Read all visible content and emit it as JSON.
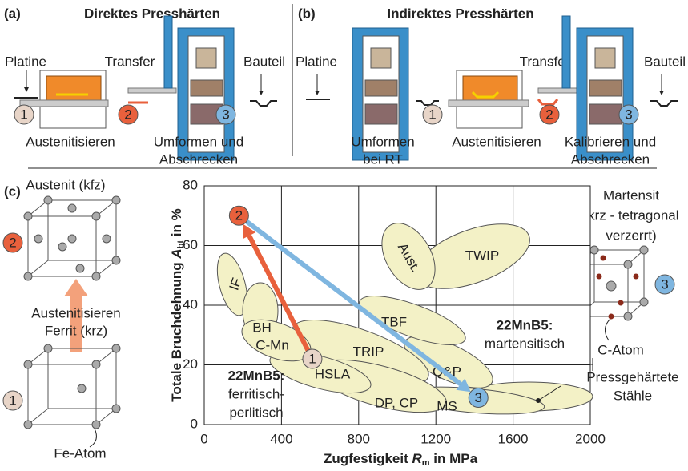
{
  "panel_a": {
    "label": "(a)",
    "title": "Direktes Presshärten",
    "platine": "Platine",
    "transfer": "Transfer",
    "bauteil": "Bauteil",
    "austenitisieren": "Austenitisieren",
    "umformen": [
      "Umformen und",
      "Abschrecken"
    ],
    "markers": [
      "1",
      "2",
      "3"
    ]
  },
  "panel_b": {
    "label": "(b)",
    "title": "Indirektes Presshärten",
    "platine": "Platine",
    "umformen": [
      "Umformen",
      "bei RT"
    ],
    "austenitisieren": "Austenitisieren",
    "transfer": "Transfer",
    "kalibrieren": [
      "Kalibrieren und",
      "Abschrecken"
    ],
    "bauteil": "Bauteil",
    "markers": [
      "1",
      "2",
      "3"
    ]
  },
  "panel_c": {
    "label": "(c)",
    "austenit": "Austenit (kfz)",
    "austenitisieren": "Austenitisieren",
    "ferrit": "Ferrit (krz)",
    "fe_atom": "Fe-Atom",
    "martensit": [
      "Martensit",
      "(krz - tetragonal",
      "verzerrt)"
    ],
    "c_atom": "C-Atom",
    "markers": [
      "2",
      "1",
      "3"
    ]
  },
  "chart_data": {
    "type": "scatter",
    "x_label": [
      "Zugfestigkeit ",
      "R",
      "m",
      " in MPa"
    ],
    "y_label": [
      "Totale Bruchdehnung ",
      "A",
      "bt",
      " in %"
    ],
    "x": [
      560,
      180,
      1420
    ],
    "values": [
      22,
      70,
      9
    ],
    "point_labels": [
      "1",
      "2",
      "3"
    ],
    "colors": [
      "#e8d5c8",
      "#e8603c",
      "#7fb6e0"
    ],
    "xlim": [
      0,
      2000
    ],
    "ylim": [
      0,
      80
    ],
    "xticks": [
      0,
      400,
      800,
      1200,
      1600,
      2000
    ],
    "yticks": [
      0,
      20,
      40,
      60,
      80
    ],
    "grid": true,
    "regions": [
      "IF",
      "BH",
      "C-Mn",
      "HSLA",
      "DP, CP",
      "TRIP",
      "TBF",
      "Q&P",
      "MS",
      "Aust.",
      "TWIP"
    ],
    "annotations": {
      "ferritic": [
        "22MnB5:",
        "ferritisch-",
        "perlitisch"
      ],
      "martensitic": [
        "22MnB5:",
        "martensitisch"
      ],
      "press": [
        "Pressgehärtete",
        "Stähle"
      ]
    }
  }
}
